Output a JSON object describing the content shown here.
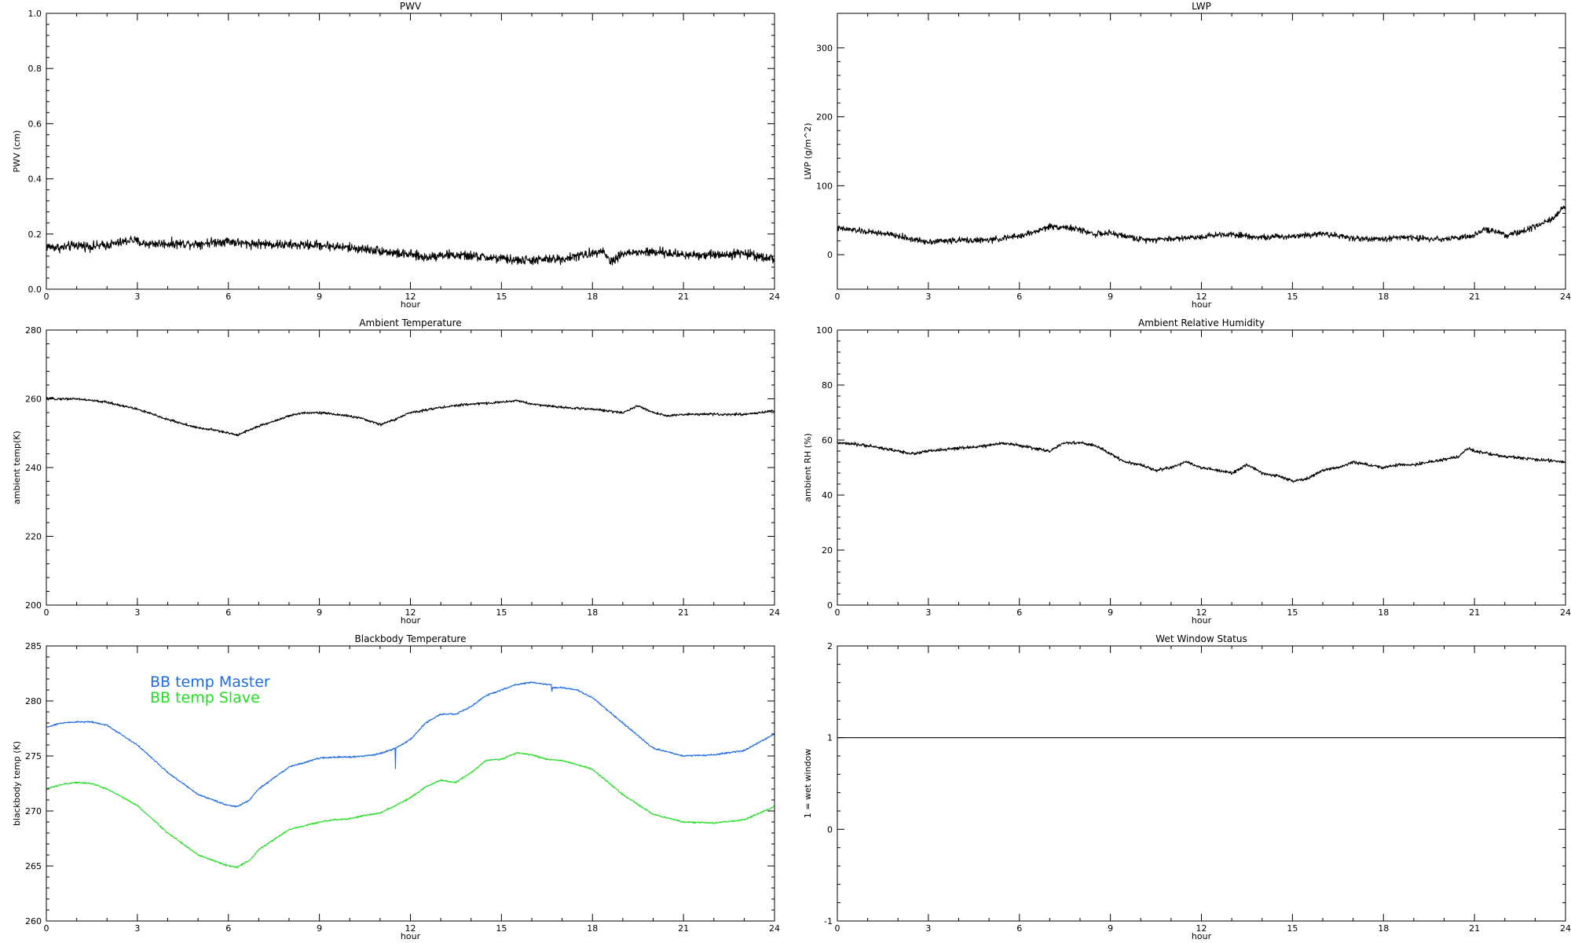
{
  "chart_data": [
    {
      "id": "pwv",
      "type": "line",
      "title": "PWV",
      "xlabel": "hour",
      "ylabel": "PWV (cm)",
      "xlim": [
        0,
        24
      ],
      "ylim": [
        0.0,
        1.0
      ],
      "xticks": [
        0,
        3,
        6,
        9,
        12,
        15,
        18,
        21,
        24
      ],
      "xtick_labels": [
        "0",
        "3",
        "6",
        "9",
        "12",
        "15",
        "18",
        "21",
        "24"
      ],
      "yticks": [
        0.0,
        0.2,
        0.4,
        0.6,
        0.8,
        1.0
      ],
      "ytick_labels": [
        "0.0",
        "0.2",
        "0.4",
        "0.6",
        "0.8",
        "1.0"
      ],
      "grid": false,
      "series": [
        {
          "color": "#000000",
          "noise": 0.012,
          "x": [
            0,
            0.5,
            1,
            1.5,
            2,
            2.5,
            2.8,
            3.2,
            4,
            5,
            5.5,
            6,
            6.5,
            7,
            8,
            9,
            10,
            10.5,
            11,
            11.5,
            12,
            12.5,
            13,
            14,
            15,
            15.5,
            16,
            17,
            18,
            18.3,
            18.6,
            19,
            20,
            21,
            22,
            23,
            24
          ],
          "y": [
            0.155,
            0.15,
            0.16,
            0.155,
            0.16,
            0.17,
            0.18,
            0.165,
            0.165,
            0.165,
            0.17,
            0.175,
            0.165,
            0.165,
            0.16,
            0.16,
            0.15,
            0.145,
            0.14,
            0.13,
            0.125,
            0.115,
            0.125,
            0.12,
            0.11,
            0.105,
            0.105,
            0.11,
            0.13,
            0.145,
            0.1,
            0.13,
            0.135,
            0.125,
            0.125,
            0.13,
            0.11
          ]
        }
      ]
    },
    {
      "id": "lwp",
      "type": "line",
      "title": "LWP",
      "xlabel": "hour",
      "ylabel": "LWP (g/m^2)",
      "xlim": [
        0,
        24
      ],
      "ylim": [
        -50,
        350
      ],
      "xticks": [
        0,
        3,
        6,
        9,
        12,
        15,
        18,
        21,
        24
      ],
      "xtick_labels": [
        "0",
        "3",
        "6",
        "9",
        "12",
        "15",
        "18",
        "21",
        "24"
      ],
      "yticks": [
        0,
        100,
        200,
        300
      ],
      "ytick_labels": [
        "0",
        "100",
        "200",
        "300"
      ],
      "grid": false,
      "series": [
        {
          "color": "#000000",
          "noise": 3,
          "x": [
            0,
            0.5,
            1,
            1.5,
            2,
            2.5,
            3,
            4,
            5,
            6,
            6.5,
            7,
            7.5,
            8,
            8.5,
            9,
            9.5,
            10,
            11,
            12,
            12.5,
            13,
            14,
            15,
            15.5,
            16,
            17,
            18,
            18.5,
            19,
            20,
            21,
            21.3,
            21.7,
            22,
            22.5,
            23,
            23.5,
            24
          ],
          "y": [
            38,
            36,
            33,
            31,
            27,
            22,
            19,
            21,
            21,
            27,
            33,
            41,
            40,
            36,
            30,
            31,
            27,
            22,
            23,
            26,
            29,
            30,
            25,
            27,
            29,
            31,
            24,
            22,
            26,
            24,
            23,
            27,
            36,
            35,
            27,
            33,
            40,
            50,
            70
          ]
        }
      ]
    },
    {
      "id": "ambient-temp",
      "type": "line",
      "title": "Ambient Temperature",
      "xlabel": "hour",
      "ylabel": "ambient temp(K)",
      "xlim": [
        0,
        24
      ],
      "ylim": [
        200,
        280
      ],
      "xticks": [
        0,
        3,
        6,
        9,
        12,
        15,
        18,
        21,
        24
      ],
      "xtick_labels": [
        "0",
        "3",
        "6",
        "9",
        "12",
        "15",
        "18",
        "21",
        "24"
      ],
      "yticks": [
        200,
        220,
        240,
        260,
        280
      ],
      "ytick_labels": [
        "200",
        "220",
        "240",
        "260",
        "280"
      ],
      "grid": false,
      "series": [
        {
          "color": "#000000",
          "noise": 0.25,
          "x": [
            0,
            1,
            2,
            3,
            4,
            5,
            5.5,
            6,
            6.3,
            6.7,
            7,
            8,
            8.5,
            9,
            10,
            10.5,
            11,
            11.5,
            12,
            13,
            14,
            15,
            15.5,
            16,
            17,
            18,
            19,
            19.5,
            20,
            20.5,
            21,
            22,
            23,
            24
          ],
          "y": [
            260,
            260,
            259,
            257,
            254,
            251.5,
            251,
            250,
            249.5,
            251,
            252,
            255,
            256,
            256,
            255,
            254,
            252.5,
            254,
            256,
            257.5,
            258.5,
            259,
            259.5,
            258.5,
            257.5,
            257,
            256,
            258,
            256,
            255,
            255.5,
            255.5,
            255.5,
            256.5
          ]
        }
      ]
    },
    {
      "id": "ambient-rh",
      "type": "line",
      "title": "Ambient Relative Humidity",
      "xlabel": "hour",
      "ylabel": "ambient RH (%)",
      "xlim": [
        0,
        24
      ],
      "ylim": [
        0,
        100
      ],
      "xticks": [
        0,
        3,
        6,
        9,
        12,
        15,
        18,
        21,
        24
      ],
      "xtick_labels": [
        "0",
        "3",
        "6",
        "9",
        "12",
        "15",
        "18",
        "21",
        "24"
      ],
      "yticks": [
        0,
        20,
        40,
        60,
        80,
        100
      ],
      "ytick_labels": [
        "0",
        "20",
        "40",
        "60",
        "80",
        "100"
      ],
      "grid": false,
      "series": [
        {
          "color": "#000000",
          "noise": 0.4,
          "x": [
            0,
            1,
            2,
            2.5,
            3,
            4,
            5,
            5.5,
            6,
            7,
            7.5,
            8,
            8.5,
            9,
            9.5,
            10,
            10.5,
            11,
            11.5,
            12,
            12.5,
            13,
            13.5,
            14,
            14.5,
            15,
            15.5,
            16,
            16.5,
            17,
            18,
            18.5,
            19,
            20,
            20.5,
            20.8,
            21,
            22,
            23,
            24
          ],
          "y": [
            59,
            58,
            56,
            55,
            56,
            57,
            58,
            59,
            58,
            56,
            59,
            59,
            58,
            55,
            52,
            51,
            49,
            50,
            52,
            50,
            49,
            48,
            51,
            48,
            47,
            45,
            46,
            49,
            50,
            52,
            50,
            51,
            51,
            53,
            54,
            57,
            56,
            54,
            53,
            52
          ]
        }
      ]
    },
    {
      "id": "bb-temp",
      "type": "line",
      "title": "Blackbody Temperature",
      "xlabel": "hour",
      "ylabel": "blackbody temp (K)",
      "xlim": [
        0,
        24
      ],
      "ylim": [
        260,
        285
      ],
      "xticks": [
        0,
        3,
        6,
        9,
        12,
        15,
        18,
        21,
        24
      ],
      "xtick_labels": [
        "0",
        "3",
        "6",
        "9",
        "12",
        "15",
        "18",
        "21",
        "24"
      ],
      "yticks": [
        260,
        265,
        270,
        275,
        280,
        285
      ],
      "ytick_labels": [
        "260",
        "265",
        "270",
        "275",
        "280",
        "285"
      ],
      "grid": false,
      "legend_placement": "top-left",
      "series": [
        {
          "name": "BB temp Master",
          "color": "#1e6be0",
          "noise": 0.05,
          "x": [
            0,
            0.5,
            1,
            1.5,
            2,
            3,
            4,
            5,
            5.5,
            6,
            6.3,
            6.7,
            7,
            8,
            9,
            9.5,
            10,
            10.5,
            11,
            11.5,
            11.49,
            11.5,
            11.51,
            12,
            12.5,
            13,
            13.5,
            14,
            14.5,
            15,
            15.5,
            16,
            16.5,
            16.65,
            16.66,
            16.67,
            17,
            17.5,
            18,
            19,
            20,
            21,
            22,
            23,
            24
          ],
          "y": [
            277.6,
            278,
            278.1,
            278.1,
            277.8,
            276,
            273.5,
            271.5,
            271,
            270.5,
            270.4,
            271,
            272,
            274,
            274.8,
            274.9,
            274.9,
            275,
            275.2,
            275.7,
            275.7,
            270.2,
            275.7,
            276.5,
            278,
            278.8,
            278.8,
            279.5,
            280.5,
            281,
            281.5,
            281.7,
            281.5,
            281.5,
            280.2,
            281.2,
            281.2,
            281,
            280.3,
            278,
            275.7,
            275,
            275.1,
            275.5,
            277
          ]
        },
        {
          "name": "BB temp Slave",
          "color": "#22dd22",
          "noise": 0.05,
          "x": [
            0,
            0.5,
            1,
            1.5,
            2,
            3,
            4,
            5,
            5.5,
            6,
            6.3,
            6.7,
            7,
            8,
            9,
            9.5,
            10,
            10.5,
            11,
            11.5,
            12,
            12.5,
            13,
            13.5,
            14,
            14.5,
            15,
            15.5,
            16,
            16.5,
            17,
            18,
            19,
            20,
            21,
            22,
            23,
            24
          ],
          "y": [
            272,
            272.4,
            272.6,
            272.5,
            272,
            270.5,
            268,
            266,
            265.5,
            265,
            264.9,
            265.5,
            266.5,
            268.3,
            269,
            269.2,
            269.3,
            269.6,
            269.8,
            270.5,
            271.2,
            272.2,
            272.8,
            272.6,
            273.5,
            274.6,
            274.7,
            275.3,
            275.1,
            274.7,
            274.6,
            273.8,
            271.5,
            269.7,
            269,
            268.9,
            269.2,
            270.4
          ]
        }
      ]
    },
    {
      "id": "wet-window",
      "type": "line",
      "title": "Wet Window Status",
      "xlabel": "hour",
      "ylabel": "1 = wet window",
      "xlim": [
        0,
        24
      ],
      "ylim": [
        -1,
        2
      ],
      "xticks": [
        0,
        3,
        6,
        9,
        12,
        15,
        18,
        21,
        24
      ],
      "xtick_labels": [
        "0",
        "3",
        "6",
        "9",
        "12",
        "15",
        "18",
        "21",
        "24"
      ],
      "yticks": [
        -1,
        0,
        1,
        2
      ],
      "ytick_labels": [
        "-1",
        "0",
        "1",
        "2"
      ],
      "grid": false,
      "series": [
        {
          "color": "#000000",
          "noise": 0,
          "x": [
            0,
            24
          ],
          "y": [
            1,
            1
          ]
        }
      ]
    }
  ]
}
